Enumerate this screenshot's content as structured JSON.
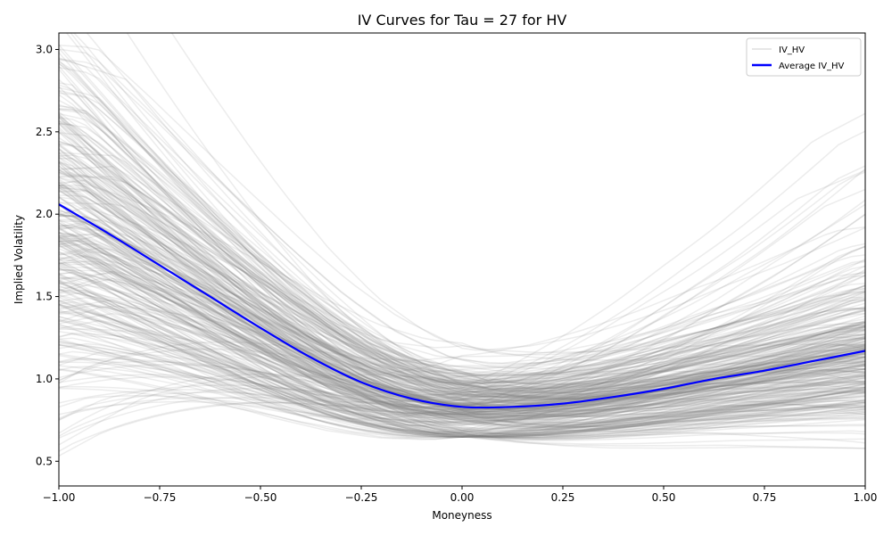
{
  "chart_data": {
    "type": "line",
    "title": "IV Curves for Tau = 27 for HV",
    "xlabel": "Moneyness",
    "ylabel": "Implied Volatility",
    "xlim": [
      -1.0,
      1.0
    ],
    "ylim": [
      0.35,
      3.1
    ],
    "xticks": [
      -1.0,
      -0.75,
      -0.5,
      -0.25,
      0.0,
      0.25,
      0.5,
      0.75,
      1.0
    ],
    "xtick_labels": [
      "−1.00",
      "−0.75",
      "−0.50",
      "−0.25",
      "0.00",
      "0.25",
      "0.50",
      "0.75",
      "1.00"
    ],
    "yticks": [
      0.5,
      1.0,
      1.5,
      2.0,
      2.5,
      3.0
    ],
    "ytick_labels": [
      "0.5",
      "1.0",
      "1.5",
      "2.0",
      "2.5",
      "3.0"
    ],
    "grid": false,
    "legend": {
      "placement": "top-right",
      "entries": [
        "IV_HV",
        "Average IV_HV"
      ]
    },
    "colors": {
      "individual": "#808080",
      "average": "#0000ff",
      "legend_individual": "#dddddd"
    },
    "individual_curve_count": 320,
    "series": [
      {
        "name": "Average IV_HV",
        "x": [
          -1.0,
          -0.875,
          -0.75,
          -0.625,
          -0.5,
          -0.375,
          -0.25,
          -0.125,
          0.0,
          0.125,
          0.25,
          0.375,
          0.5,
          0.625,
          0.75,
          0.875,
          1.0
        ],
        "values": [
          2.06,
          1.88,
          1.69,
          1.5,
          1.31,
          1.13,
          0.98,
          0.88,
          0.83,
          0.83,
          0.85,
          0.89,
          0.94,
          1.0,
          1.05,
          1.11,
          1.17
        ]
      }
    ]
  }
}
